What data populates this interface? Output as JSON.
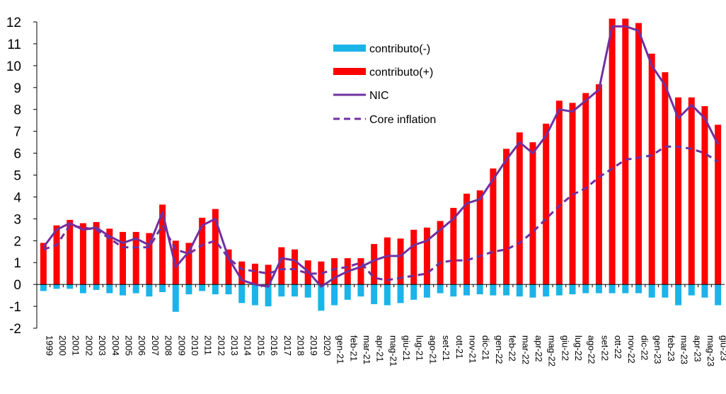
{
  "chart_data": {
    "type": "bar",
    "title": "",
    "xlabel": "",
    "ylabel": "",
    "ylim": [
      -2,
      12
    ],
    "yticks": [
      -2,
      -1,
      0,
      1,
      2,
      3,
      4,
      5,
      6,
      7,
      8,
      9,
      10,
      11,
      12
    ],
    "grid": false,
    "legend_position": "top-center",
    "categories": [
      "1999",
      "2000",
      "2001",
      "2002",
      "2003",
      "2004",
      "2005",
      "2006",
      "2007",
      "2008",
      "2009",
      "2010",
      "2011",
      "2012",
      "2013",
      "2014",
      "2015",
      "2016",
      "2017",
      "2018",
      "2019",
      "2020",
      "gen-21",
      "feb-21",
      "mar-21",
      "apr-21",
      "mag-21",
      "giu-21",
      "lug-21",
      "ago-21",
      "set-21",
      "ott-21",
      "nov-21",
      "dic-21",
      "gen-22",
      "feb-22",
      "mar-22",
      "apr-22",
      "mag-22",
      "giu-22",
      "lug-22",
      "ago-22",
      "set-22",
      "ott-22",
      "nov-22",
      "dic-22",
      "gen-23",
      "feb-23",
      "mar-23",
      "apr-23",
      "mag-23",
      "giu-23"
    ],
    "series": [
      {
        "name": "contributo(-)",
        "kind": "bar",
        "color": "#1bb4e8",
        "values": [
          -0.3,
          -0.2,
          -0.2,
          -0.4,
          -0.25,
          -0.4,
          -0.5,
          -0.4,
          -0.55,
          -0.35,
          -1.25,
          -0.45,
          -0.3,
          -0.45,
          -0.45,
          -0.85,
          -0.95,
          -1.0,
          -0.55,
          -0.55,
          -0.6,
          -1.2,
          -0.95,
          -0.7,
          -0.55,
          -0.9,
          -0.95,
          -0.85,
          -0.7,
          -0.6,
          -0.4,
          -0.55,
          -0.5,
          -0.45,
          -0.5,
          -0.5,
          -0.55,
          -0.6,
          -0.55,
          -0.5,
          -0.45,
          -0.4,
          -0.4,
          -0.4,
          -0.4,
          -0.4,
          -0.6,
          -0.6,
          -0.95,
          -0.5,
          -0.6,
          -0.95
        ]
      },
      {
        "name": "contributo(+)",
        "kind": "bar",
        "color": "#ff0000",
        "values": [
          1.9,
          2.7,
          2.95,
          2.8,
          2.85,
          2.55,
          2.4,
          2.4,
          2.35,
          3.65,
          2.0,
          1.9,
          3.05,
          3.45,
          1.6,
          1.05,
          0.95,
          0.9,
          1.7,
          1.6,
          1.1,
          1.05,
          1.2,
          1.2,
          1.2,
          1.85,
          2.15,
          2.1,
          2.5,
          2.6,
          2.9,
          3.5,
          4.15,
          4.3,
          5.3,
          6.2,
          6.95,
          6.5,
          7.35,
          8.4,
          8.3,
          8.75,
          9.15,
          12.15,
          12.15,
          11.95,
          10.55,
          9.7,
          8.55,
          8.55,
          8.15,
          7.3
        ]
      },
      {
        "name": "NIC",
        "kind": "line",
        "color": "#7030a0",
        "values": [
          1.7,
          2.5,
          2.8,
          2.5,
          2.6,
          2.2,
          1.9,
          2.1,
          1.8,
          3.3,
          0.8,
          1.5,
          2.7,
          3.0,
          1.2,
          0.2,
          0.0,
          -0.1,
          1.2,
          1.1,
          0.6,
          -0.1,
          0.3,
          0.6,
          0.8,
          1.1,
          1.3,
          1.3,
          1.8,
          2.0,
          2.5,
          3.0,
          3.7,
          3.9,
          4.8,
          5.7,
          6.5,
          6.0,
          6.8,
          8.0,
          7.9,
          8.4,
          8.9,
          11.8,
          11.8,
          11.6,
          10.0,
          9.1,
          7.6,
          8.2,
          7.6,
          6.4
        ]
      },
      {
        "name": "Core inflation",
        "kind": "line-dashed",
        "color": "#7030a0",
        "values": [
          1.6,
          1.8,
          2.7,
          2.6,
          2.5,
          2.1,
          1.7,
          1.7,
          1.7,
          2.7,
          1.6,
          1.4,
          1.8,
          2.0,
          1.2,
          0.7,
          0.6,
          0.5,
          0.7,
          0.7,
          0.5,
          0.5,
          0.7,
          0.8,
          1.0,
          0.3,
          0.2,
          0.3,
          0.4,
          0.5,
          1.0,
          1.1,
          1.1,
          1.3,
          1.5,
          1.6,
          1.9,
          2.4,
          3.0,
          3.6,
          4.1,
          4.4,
          4.9,
          5.3,
          5.7,
          5.8,
          5.9,
          6.3,
          6.3,
          6.2,
          6.0,
          5.6
        ]
      }
    ]
  }
}
